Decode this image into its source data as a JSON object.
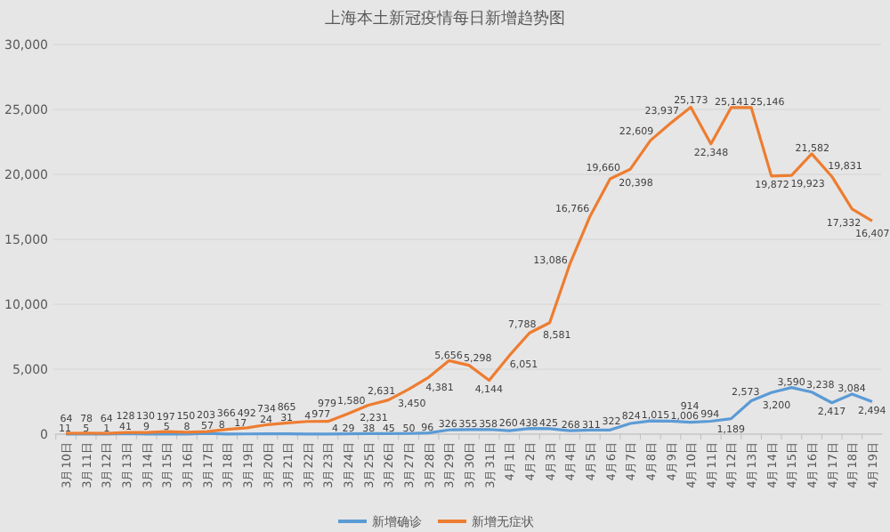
{
  "chart_data": {
    "type": "line",
    "title": "上海本土新冠疫情每日新增趋势图",
    "categories": [
      "3月10日",
      "3月11日",
      "3月12日",
      "3月13日",
      "3月14日",
      "3月15日",
      "3月16日",
      "3月17日",
      "3月18日",
      "3月19日",
      "3月20日",
      "3月21日",
      "3月22日",
      "3月23日",
      "3月24日",
      "3月25日",
      "3月26日",
      "3月27日",
      "3月28日",
      "3月29日",
      "3月30日",
      "3月31日",
      "4月1日",
      "4月2日",
      "4月3日",
      "4月4日",
      "4月5日",
      "4月6日",
      "4月7日",
      "4月8日",
      "4月9日",
      "4月10日",
      "4月11日",
      "4月12日",
      "4月13日",
      "4月14日",
      "4月15日",
      "4月16日",
      "4月17日",
      "4月18日",
      "4月19日"
    ],
    "series": [
      {
        "name": "新增确诊",
        "color": "#5b9bd5",
        "values": [
          11,
          5,
          1,
          41,
          9,
          5,
          8,
          57,
          8,
          17,
          24,
          31,
          4,
          4,
          29,
          38,
          45,
          50,
          96,
          326,
          355,
          358,
          260,
          438,
          425,
          268,
          311,
          322,
          824,
          1015,
          1006,
          914,
          994,
          1189,
          2573,
          3200,
          3590,
          3238,
          2417,
          3084,
          2494
        ],
        "value_labels": [
          "11",
          "5",
          "1",
          "41",
          "9",
          "5",
          "8",
          "57",
          "8",
          "17",
          "24",
          "31",
          "4",
          "4",
          "29",
          "38",
          "45",
          "50",
          "96",
          "326",
          "355",
          "358",
          "260",
          "438",
          "425",
          "268",
          "311",
          "322",
          "824",
          "1,015",
          "1,006",
          "914",
          "994",
          "1,189",
          "2,573",
          "3,200",
          "3,590",
          "3,238",
          "2,417",
          "3,084",
          "2,494"
        ]
      },
      {
        "name": "新增无症状",
        "color": "#ed7d31",
        "values": [
          64,
          78,
          64,
          128,
          130,
          197,
          150,
          203,
          366,
          492,
          734,
          865,
          977,
          979,
          1580,
          2231,
          2631,
          3450,
          4381,
          5656,
          5298,
          4144,
          6051,
          7788,
          8581,
          13086,
          16766,
          19660,
          20398,
          22609,
          23937,
          25173,
          22348,
          25141,
          25146,
          19872,
          19923,
          21582,
          19831,
          17332,
          16407
        ],
        "value_labels": [
          "64",
          "78",
          "64",
          "128",
          "130",
          "197",
          "150",
          "203",
          "366",
          "492",
          "734",
          "865",
          "977",
          "979",
          "1,580",
          "2,231",
          "2,631",
          "3,450",
          "4,381",
          "5,656",
          "5,298",
          "4,144",
          "6,051",
          "7,788",
          "8,581",
          "13,086",
          "16,766",
          "19,660",
          "20,398",
          "22,609",
          "23,937",
          "25,173",
          "22,348",
          "25,141",
          "25,146",
          "19,872",
          "19,923",
          "21,582",
          "19,831",
          "17,332",
          "16,407"
        ]
      }
    ],
    "ylim": [
      0,
      30000
    ],
    "yticks": [
      {
        "value": 0,
        "label": "0"
      },
      {
        "value": 5000,
        "label": "5,000"
      },
      {
        "value": 10000,
        "label": "10,000"
      },
      {
        "value": 15000,
        "label": "15,000"
      },
      {
        "value": 20000,
        "label": "20,000"
      },
      {
        "value": 25000,
        "label": "25,000"
      },
      {
        "value": 30000,
        "label": "30,000"
      }
    ],
    "grid": "y",
    "legend": "bottom"
  }
}
